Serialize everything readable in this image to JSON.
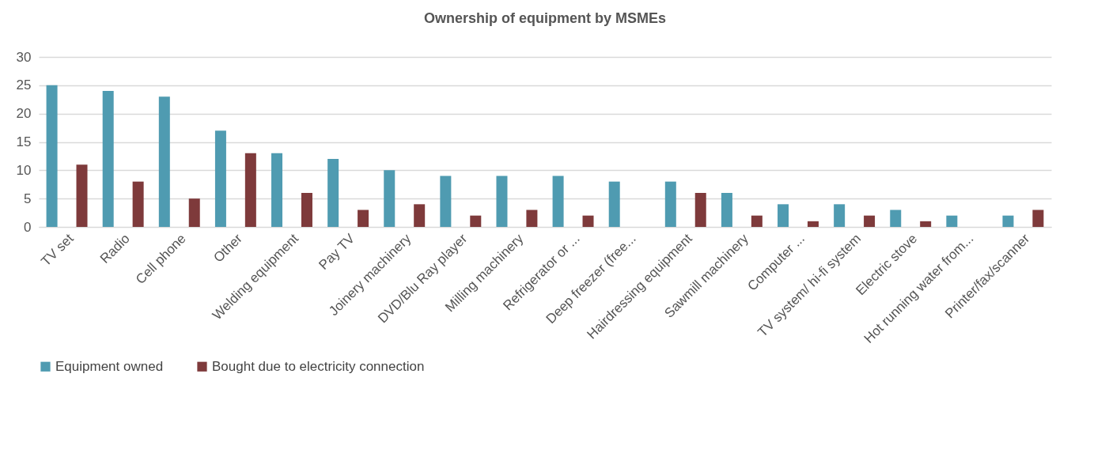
{
  "chart_data": {
    "type": "bar",
    "title": "Ownership of equipment by MSMEs",
    "categories": [
      "TV set",
      "Radio",
      "Cell phone",
      "Other",
      "Welding equipment",
      "Pay TV",
      "Joinery machinery",
      "DVD/Blu Ray player",
      "Milling machinery",
      "Refrigerator or ...",
      "Deep freezer (free...",
      "Hairdressing equipment",
      "Sawmill machinery",
      "Computer ...",
      "TV system/ hi-fi system",
      "Electric stove",
      "Hot running water from...",
      "Printer/fax/scanner"
    ],
    "series": [
      {
        "name": "Equipment owned",
        "color": "#4f9bb1",
        "values": [
          25,
          24,
          23,
          17,
          13,
          12,
          10,
          9,
          9,
          9,
          8,
          8,
          6,
          4,
          4,
          3,
          2,
          2
        ]
      },
      {
        "name": "Bought due to electricity connection",
        "color": "#7e3a3b",
        "values": [
          11,
          8,
          5,
          13,
          6,
          3,
          4,
          2,
          3,
          2,
          null,
          6,
          2,
          1,
          2,
          1,
          null,
          3
        ]
      }
    ],
    "ylim": [
      0,
      30
    ],
    "yticks": [
      0,
      5,
      10,
      15,
      20,
      25,
      30
    ],
    "grid": "y",
    "legend": "bottom"
  }
}
